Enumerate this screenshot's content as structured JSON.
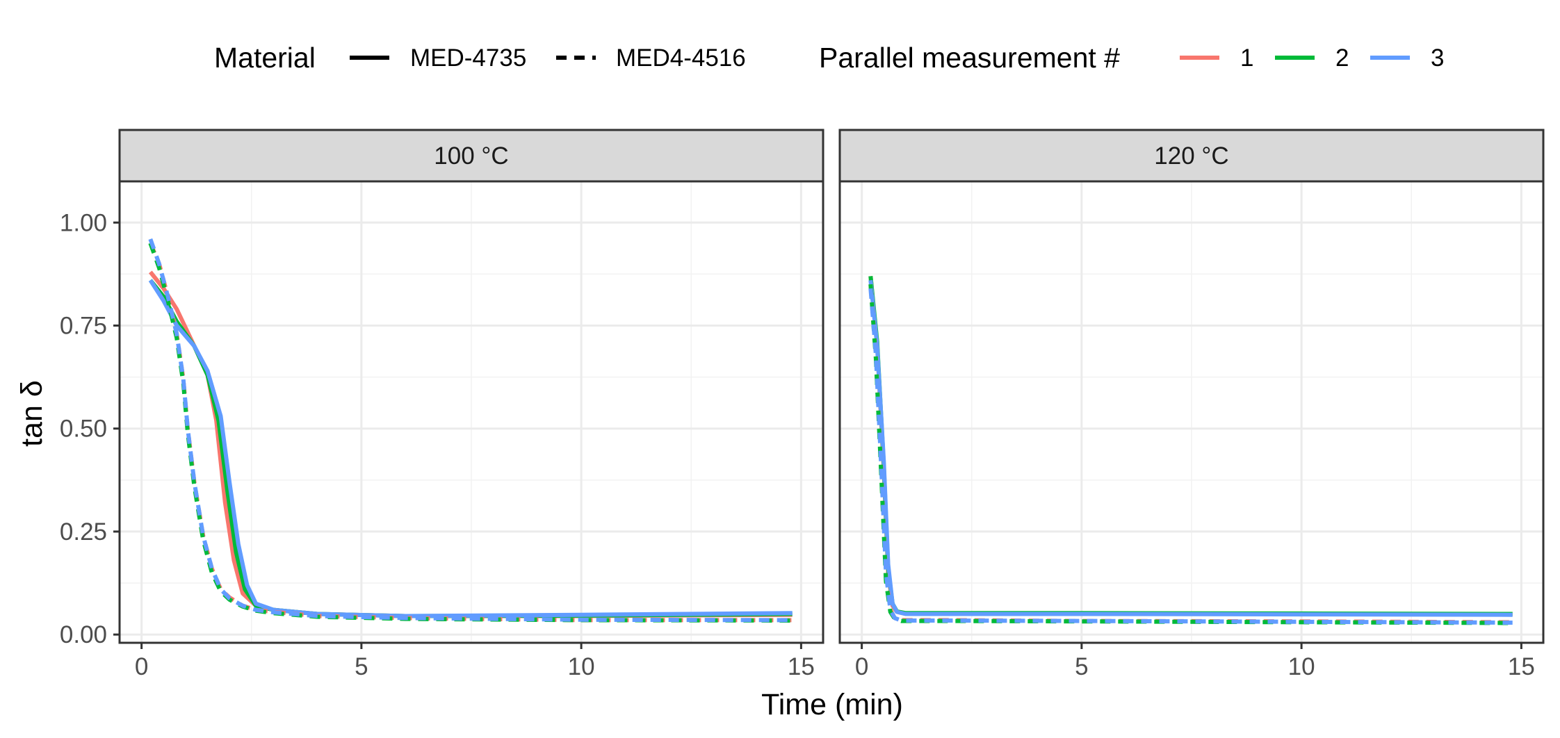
{
  "chart_data": {
    "type": "line",
    "xlabel": "Time (min)",
    "ylabel": "tan δ",
    "xlim": [
      -0.5,
      15.5
    ],
    "ylim": [
      -0.02,
      1.1
    ],
    "x_ticks": [
      0,
      5,
      10,
      15
    ],
    "x_tick_labels": [
      "0",
      "5",
      "10",
      "15"
    ],
    "y_ticks": [
      0.0,
      0.25,
      0.5,
      0.75,
      1.0
    ],
    "y_tick_labels": [
      "0.00",
      "0.25",
      "0.50",
      "0.75",
      "1.00"
    ],
    "grid": true,
    "legend_position": "top",
    "legend": {
      "material": {
        "title": "Material",
        "entries": [
          {
            "label": "MED-4735",
            "linetype": "solid"
          },
          {
            "label": "MED4-4516",
            "linetype": "dashed"
          }
        ]
      },
      "parallel": {
        "title": "Parallel measurement #",
        "entries": [
          {
            "label": "1",
            "color": "#F8766D"
          },
          {
            "label": "2",
            "color": "#00BA38"
          },
          {
            "label": "3",
            "color": "#619CFF"
          }
        ]
      }
    },
    "panels": [
      {
        "label": "100 °C",
        "series": [
          {
            "material": "MED-4735",
            "parallel": "1",
            "x": [
              0.2,
              0.5,
              0.8,
              1.2,
              1.5,
              1.7,
              1.9,
              2.1,
              2.3,
              2.6,
              3.0,
              4.0,
              6.0,
              10.0,
              14.8
            ],
            "y": [
              0.88,
              0.84,
              0.79,
              0.7,
              0.63,
              0.52,
              0.32,
              0.18,
              0.1,
              0.07,
              0.06,
              0.05,
              0.045,
              0.045,
              0.048
            ]
          },
          {
            "material": "MED-4735",
            "parallel": "2",
            "x": [
              0.2,
              0.5,
              0.8,
              1.2,
              1.5,
              1.75,
              1.95,
              2.15,
              2.35,
              2.6,
              3.0,
              4.0,
              6.0,
              10.0,
              14.8
            ],
            "y": [
              0.86,
              0.82,
              0.76,
              0.7,
              0.63,
              0.52,
              0.35,
              0.2,
              0.11,
              0.07,
              0.06,
              0.05,
              0.045,
              0.046,
              0.05
            ]
          },
          {
            "material": "MED-4735",
            "parallel": "3",
            "x": [
              0.2,
              0.5,
              0.8,
              1.2,
              1.5,
              1.8,
              2.0,
              2.2,
              2.4,
              2.6,
              3.0,
              4.0,
              6.0,
              10.0,
              14.8
            ],
            "y": [
              0.86,
              0.81,
              0.75,
              0.7,
              0.64,
              0.53,
              0.37,
              0.22,
              0.12,
              0.075,
              0.06,
              0.05,
              0.045,
              0.048,
              0.052
            ]
          },
          {
            "material": "MED4-4516",
            "parallel": "1",
            "x": [
              0.2,
              0.4,
              0.6,
              0.8,
              0.95,
              1.05,
              1.2,
              1.4,
              1.6,
              1.8,
              2.0,
              2.3,
              2.6,
              3.0,
              4.0,
              6.0,
              10.0,
              14.8
            ],
            "y": [
              0.95,
              0.9,
              0.82,
              0.73,
              0.62,
              0.5,
              0.37,
              0.24,
              0.16,
              0.11,
              0.09,
              0.07,
              0.06,
              0.055,
              0.045,
              0.04,
              0.035,
              0.035
            ]
          },
          {
            "material": "MED4-4516",
            "parallel": "2",
            "x": [
              0.2,
              0.4,
              0.6,
              0.8,
              0.95,
              1.05,
              1.2,
              1.4,
              1.6,
              1.8,
              2.0,
              2.3,
              2.6,
              3.0,
              4.0,
              6.0,
              10.0,
              14.8
            ],
            "y": [
              0.95,
              0.89,
              0.81,
              0.72,
              0.61,
              0.49,
              0.36,
              0.23,
              0.15,
              0.105,
              0.085,
              0.068,
              0.058,
              0.052,
              0.043,
              0.038,
              0.035,
              0.034
            ]
          },
          {
            "material": "MED4-4516",
            "parallel": "3",
            "x": [
              0.2,
              0.4,
              0.6,
              0.8,
              0.95,
              1.05,
              1.2,
              1.4,
              1.6,
              1.8,
              2.0,
              2.3,
              2.6,
              3.0,
              4.0,
              6.0,
              10.0,
              14.8
            ],
            "y": [
              0.96,
              0.9,
              0.82,
              0.73,
              0.62,
              0.5,
              0.37,
              0.24,
              0.16,
              0.11,
              0.088,
              0.07,
              0.06,
              0.054,
              0.045,
              0.04,
              0.036,
              0.035
            ]
          }
        ]
      },
      {
        "label": "120 °C",
        "series": [
          {
            "material": "MED-4735",
            "parallel": "1",
            "x": [
              0.2,
              0.35,
              0.5,
              0.6,
              0.7,
              0.8,
              1.0,
              2.0,
              5.0,
              10.0,
              14.8
            ],
            "y": [
              0.87,
              0.7,
              0.4,
              0.15,
              0.07,
              0.055,
              0.05,
              0.05,
              0.05,
              0.05,
              0.05
            ]
          },
          {
            "material": "MED-4735",
            "parallel": "2",
            "x": [
              0.2,
              0.35,
              0.5,
              0.6,
              0.7,
              0.8,
              1.0,
              2.0,
              5.0,
              10.0,
              14.8
            ],
            "y": [
              0.87,
              0.71,
              0.41,
              0.16,
              0.075,
              0.056,
              0.052,
              0.052,
              0.052,
              0.051,
              0.05
            ]
          },
          {
            "material": "MED-4735",
            "parallel": "3",
            "x": [
              0.2,
              0.35,
              0.5,
              0.6,
              0.7,
              0.8,
              1.0,
              2.0,
              5.0,
              10.0,
              14.8
            ],
            "y": [
              0.86,
              0.7,
              0.42,
              0.17,
              0.075,
              0.055,
              0.05,
              0.05,
              0.05,
              0.049,
              0.048
            ]
          },
          {
            "material": "MED4-4516",
            "parallel": "1",
            "x": [
              0.2,
              0.32,
              0.45,
              0.55,
              0.65,
              0.75,
              0.9,
              1.2,
              2.0,
              5.0,
              10.0,
              14.8
            ],
            "y": [
              0.85,
              0.68,
              0.38,
              0.14,
              0.06,
              0.04,
              0.035,
              0.035,
              0.035,
              0.033,
              0.032,
              0.03
            ]
          },
          {
            "material": "MED4-4516",
            "parallel": "2",
            "x": [
              0.2,
              0.32,
              0.45,
              0.55,
              0.65,
              0.75,
              0.9,
              1.2,
              2.0,
              5.0,
              10.0,
              14.8
            ],
            "y": [
              0.85,
              0.67,
              0.37,
              0.13,
              0.055,
              0.038,
              0.033,
              0.033,
              0.033,
              0.032,
              0.03,
              0.028
            ]
          },
          {
            "material": "MED4-4516",
            "parallel": "3",
            "x": [
              0.2,
              0.32,
              0.45,
              0.55,
              0.65,
              0.75,
              0.9,
              1.2,
              2.0,
              5.0,
              10.0,
              14.8
            ],
            "y": [
              0.84,
              0.68,
              0.39,
              0.15,
              0.06,
              0.04,
              0.034,
              0.034,
              0.034,
              0.033,
              0.031,
              0.029
            ]
          }
        ]
      }
    ]
  }
}
